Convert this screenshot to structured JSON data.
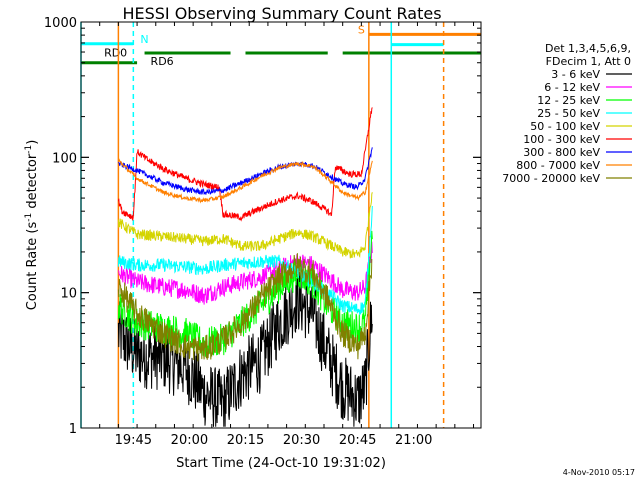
{
  "chart_data": {
    "type": "line",
    "title": "HESSI Observing Summary Count Rates",
    "xlabel": "Start Time (24-Oct-10 19:31:02)",
    "ylabel_main": "Count Rate (s",
    "ylabel_sup1": "-1",
    "ylabel_mid": " detector",
    "ylabel_sup2": "-1",
    "ylabel_end": ")",
    "yscale": "log",
    "ylim": [
      1,
      1000
    ],
    "xlim_minutes": [
      0,
      107
    ],
    "x_ticks": [
      {
        "label": "19:45",
        "m": 14
      },
      {
        "label": "20:00",
        "m": 29
      },
      {
        "label": "20:15",
        "m": 44
      },
      {
        "label": "20:30",
        "m": 59
      },
      {
        "label": "20:45",
        "m": 74
      },
      {
        "label": "21:00",
        "m": 89
      }
    ],
    "y_ticks": [
      {
        "label": "1",
        "v": 1
      },
      {
        "label": "10",
        "v": 10
      },
      {
        "label": "100",
        "v": 100
      },
      {
        "label": "1000",
        "v": 1000
      }
    ],
    "legend_header": [
      "Det 1,3,4,5,6,9,",
      "FDecim 1, Att 0"
    ],
    "series": [
      {
        "name": "3 - 6 keV",
        "color": "#000000",
        "pts": [
          [
            10,
            5
          ],
          [
            15,
            3.5
          ],
          [
            22,
            3.3
          ],
          [
            28,
            2.8
          ],
          [
            33,
            1.8
          ],
          [
            38,
            1.5
          ],
          [
            43,
            2.5
          ],
          [
            48,
            3.2
          ],
          [
            53,
            6
          ],
          [
            58,
            9
          ],
          [
            62,
            7
          ],
          [
            66,
            3.5
          ],
          [
            70,
            2
          ],
          [
            74,
            1.6
          ],
          [
            76,
            2
          ],
          [
            78,
            8
          ]
        ]
      },
      {
        "name": "6 - 12 keV",
        "color": "#ff00ff",
        "pts": [
          [
            10,
            14
          ],
          [
            15,
            12
          ],
          [
            22,
            11
          ],
          [
            28,
            10.5
          ],
          [
            33,
            9.5
          ],
          [
            38,
            11
          ],
          [
            43,
            12
          ],
          [
            48,
            13
          ],
          [
            53,
            15
          ],
          [
            58,
            17
          ],
          [
            62,
            16
          ],
          [
            66,
            13
          ],
          [
            70,
            10.5
          ],
          [
            74,
            10
          ],
          [
            76,
            11
          ],
          [
            78,
            22
          ]
        ]
      },
      {
        "name": "12 - 25 keV",
        "color": "#00ff00",
        "pts": [
          [
            10,
            8
          ],
          [
            15,
            6
          ],
          [
            22,
            5.5
          ],
          [
            28,
            5
          ],
          [
            33,
            4.2
          ],
          [
            38,
            4.5
          ],
          [
            43,
            6
          ],
          [
            48,
            8
          ],
          [
            53,
            11
          ],
          [
            58,
            14
          ],
          [
            62,
            12
          ],
          [
            66,
            8
          ],
          [
            70,
            6
          ],
          [
            74,
            5.5
          ],
          [
            76,
            6
          ],
          [
            78,
            30
          ]
        ]
      },
      {
        "name": "25 - 50 keV",
        "color": "#00ffff",
        "pts": [
          [
            10,
            17
          ],
          [
            15,
            16
          ],
          [
            22,
            16
          ],
          [
            28,
            15.5
          ],
          [
            33,
            15
          ],
          [
            38,
            16
          ],
          [
            43,
            16.5
          ],
          [
            48,
            17
          ],
          [
            53,
            17
          ],
          [
            58,
            14
          ],
          [
            62,
            12
          ],
          [
            66,
            10
          ],
          [
            70,
            8
          ],
          [
            74,
            7.5
          ],
          [
            76,
            8
          ],
          [
            78,
            45
          ]
        ]
      },
      {
        "name": "50 - 100 keV",
        "color": "#d4d400",
        "pts": [
          [
            10,
            33
          ],
          [
            15,
            27
          ],
          [
            22,
            26
          ],
          [
            28,
            25
          ],
          [
            33,
            24
          ],
          [
            38,
            25
          ],
          [
            43,
            22
          ],
          [
            48,
            22
          ],
          [
            53,
            25
          ],
          [
            58,
            28
          ],
          [
            62,
            26
          ],
          [
            66,
            23
          ],
          [
            70,
            20
          ],
          [
            74,
            19
          ],
          [
            76,
            22
          ],
          [
            78,
            60
          ]
        ]
      },
      {
        "name": "100 - 300 keV",
        "color": "#ff0000",
        "pts": [
          [
            10,
            48
          ],
          [
            11,
            40
          ],
          [
            14,
            36
          ],
          [
            15,
            110
          ],
          [
            18,
            95
          ],
          [
            23,
            80
          ],
          [
            28,
            70
          ],
          [
            33,
            63
          ],
          [
            37,
            60
          ],
          [
            38,
            38
          ],
          [
            43,
            36
          ],
          [
            48,
            42
          ],
          [
            53,
            48
          ],
          [
            58,
            52
          ],
          [
            62,
            47
          ],
          [
            66,
            40
          ],
          [
            67,
            37
          ],
          [
            68,
            85
          ],
          [
            72,
            75
          ],
          [
            75,
            75
          ],
          [
            76,
            110
          ],
          [
            78,
            250
          ]
        ]
      },
      {
        "name": "300 - 800 keV",
        "color": "#0000ff",
        "pts": [
          [
            10,
            90
          ],
          [
            15,
            80
          ],
          [
            22,
            65
          ],
          [
            28,
            58
          ],
          [
            33,
            55
          ],
          [
            38,
            57
          ],
          [
            43,
            65
          ],
          [
            48,
            75
          ],
          [
            53,
            85
          ],
          [
            58,
            90
          ],
          [
            62,
            87
          ],
          [
            66,
            75
          ],
          [
            70,
            64
          ],
          [
            74,
            60
          ],
          [
            76,
            70
          ],
          [
            78,
            120
          ]
        ]
      },
      {
        "name": "800 - 7000 keV",
        "color": "#ff8000",
        "pts": [
          [
            10,
            95
          ],
          [
            15,
            70
          ],
          [
            22,
            55
          ],
          [
            28,
            50
          ],
          [
            33,
            48
          ],
          [
            38,
            51
          ],
          [
            43,
            60
          ],
          [
            48,
            72
          ],
          [
            53,
            84
          ],
          [
            58,
            90
          ],
          [
            62,
            86
          ],
          [
            66,
            70
          ],
          [
            70,
            55
          ],
          [
            74,
            50
          ],
          [
            76,
            55
          ],
          [
            78,
            95
          ]
        ]
      },
      {
        "name": "7000 - 20000 keV",
        "color": "#808000",
        "pts": [
          [
            10,
            11
          ],
          [
            15,
            7
          ],
          [
            22,
            5
          ],
          [
            28,
            4
          ],
          [
            33,
            3.8
          ],
          [
            38,
            4.5
          ],
          [
            43,
            6
          ],
          [
            48,
            9
          ],
          [
            53,
            13
          ],
          [
            58,
            16
          ],
          [
            62,
            14
          ],
          [
            66,
            9
          ],
          [
            70,
            5
          ],
          [
            74,
            4
          ],
          [
            76,
            5
          ],
          [
            78,
            20
          ]
        ]
      }
    ],
    "flags": [
      {
        "label": "N",
        "color": "#00ffff",
        "segments": [
          [
            0,
            14
          ]
        ],
        "level": 690
      },
      {
        "label": "S",
        "color": "#ff8000",
        "segments": [
          [
            77,
            107
          ]
        ],
        "level": 810
      },
      {
        "label": "",
        "color": "#00ffff",
        "segments": [
          [
            83,
            97
          ]
        ],
        "level": 680
      },
      {
        "label": "RD0",
        "color": "#008000",
        "segments": [
          [
            0,
            15
          ]
        ],
        "level": 500
      },
      {
        "label": "RD6",
        "color": "#008000",
        "segments": [
          [
            17,
            40
          ],
          [
            44,
            66
          ],
          [
            70,
            107
          ]
        ],
        "level": 590
      }
    ],
    "vlines": [
      {
        "m": 0,
        "color": "#00ffff",
        "dash": false
      },
      {
        "m": 14,
        "color": "#00ffff",
        "dash": true
      },
      {
        "m": 10,
        "color": "#ff8000",
        "dash": false
      },
      {
        "m": 77,
        "color": "#ff8000",
        "dash": false
      },
      {
        "m": 83,
        "color": "#00ffff",
        "dash": false
      },
      {
        "m": 97,
        "color": "#ff8000",
        "dash": true
      }
    ]
  },
  "footer_timestamp": "4-Nov-2010 05:17"
}
